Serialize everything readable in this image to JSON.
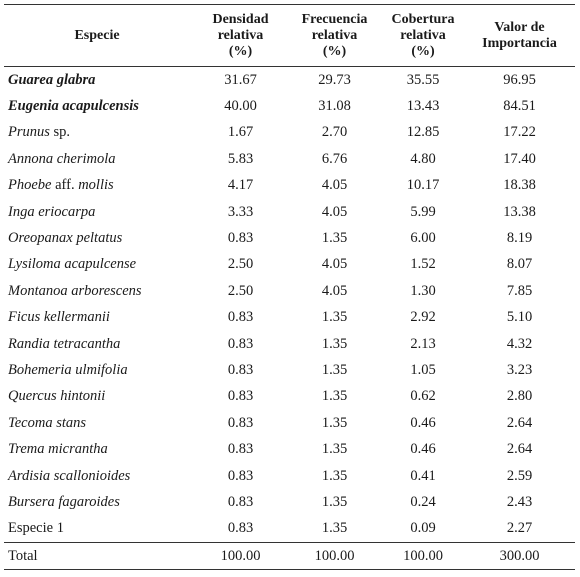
{
  "table": {
    "headers": {
      "species": "Especie",
      "densidad": [
        "Densidad",
        "relativa",
        "(%)"
      ],
      "frecuencia": [
        "Frecuencia",
        "relativa",
        "(%)"
      ],
      "cobertura": [
        "Cobertura",
        "relativa",
        "(%)"
      ],
      "valor": [
        "Valor de",
        "Importancia"
      ]
    },
    "rows": [
      {
        "species": "Guarea glabra",
        "style": "bold-italic",
        "densidad": "31.67",
        "frecuencia": "29.73",
        "cobertura": "35.55",
        "valor": "96.95"
      },
      {
        "species": "Eugenia acapulcensis",
        "style": "bold-italic",
        "densidad": "40.00",
        "frecuencia": "31.08",
        "cobertura": "13.43",
        "valor": "84.51"
      },
      {
        "species": "Prunus",
        "species_suffix": " sp.",
        "style": "italic-mixed",
        "densidad": "1.67",
        "frecuencia": "2.70",
        "cobertura": "12.85",
        "valor": "17.22"
      },
      {
        "species": "Annona cherimola",
        "style": "italic",
        "densidad": "5.83",
        "frecuencia": "6.76",
        "cobertura": "4.80",
        "valor": "17.40"
      },
      {
        "species": "Phoebe",
        "species_mid": " aff. ",
        "species_suffix": "mollis",
        "style": "italic-aff",
        "densidad": "4.17",
        "frecuencia": "4.05",
        "cobertura": "10.17",
        "valor": "18.38"
      },
      {
        "species": "Inga eriocarpa",
        "style": "italic",
        "densidad": "3.33",
        "frecuencia": "4.05",
        "cobertura": "5.99",
        "valor": "13.38"
      },
      {
        "species": "Oreopanax peltatus",
        "style": "italic",
        "densidad": "0.83",
        "frecuencia": "1.35",
        "cobertura": "6.00",
        "valor": "8.19"
      },
      {
        "species": "Lysiloma acapulcense",
        "style": "italic",
        "densidad": "2.50",
        "frecuencia": "4.05",
        "cobertura": "1.52",
        "valor": "8.07"
      },
      {
        "species": "Montanoa arborescens",
        "style": "italic",
        "densidad": "2.50",
        "frecuencia": "4.05",
        "cobertura": "1.30",
        "valor": "7.85"
      },
      {
        "species": "Ficus kellermanii",
        "style": "italic",
        "densidad": "0.83",
        "frecuencia": "1.35",
        "cobertura": "2.92",
        "valor": "5.10"
      },
      {
        "species": "Randia tetracantha",
        "style": "italic",
        "densidad": "0.83",
        "frecuencia": "1.35",
        "cobertura": "2.13",
        "valor": "4.32"
      },
      {
        "species": "Bohemeria ulmifolia",
        "style": "italic",
        "densidad": "0.83",
        "frecuencia": "1.35",
        "cobertura": "1.05",
        "valor": "3.23"
      },
      {
        "species": "Quercus hintonii",
        "style": "italic",
        "densidad": "0.83",
        "frecuencia": "1.35",
        "cobertura": "0.62",
        "valor": "2.80"
      },
      {
        "species": "Tecoma stans",
        "style": "italic",
        "densidad": "0.83",
        "frecuencia": "1.35",
        "cobertura": "0.46",
        "valor": "2.64"
      },
      {
        "species": "Trema micrantha",
        "style": "italic",
        "densidad": "0.83",
        "frecuencia": "1.35",
        "cobertura": "0.46",
        "valor": "2.64"
      },
      {
        "species": "Ardisia scallonioides",
        "style": "italic",
        "densidad": "0.83",
        "frecuencia": "1.35",
        "cobertura": "0.41",
        "valor": "2.59"
      },
      {
        "species": "Bursera fagaroides",
        "style": "italic",
        "densidad": "0.83",
        "frecuencia": "1.35",
        "cobertura": "0.24",
        "valor": "2.43"
      },
      {
        "species": "Especie 1",
        "style": "plain",
        "densidad": "0.83",
        "frecuencia": "1.35",
        "cobertura": "0.09",
        "valor": "2.27"
      }
    ],
    "total": {
      "label": "Total",
      "densidad": "100.00",
      "frecuencia": "100.00",
      "cobertura": "100.00",
      "valor": "300.00"
    }
  }
}
